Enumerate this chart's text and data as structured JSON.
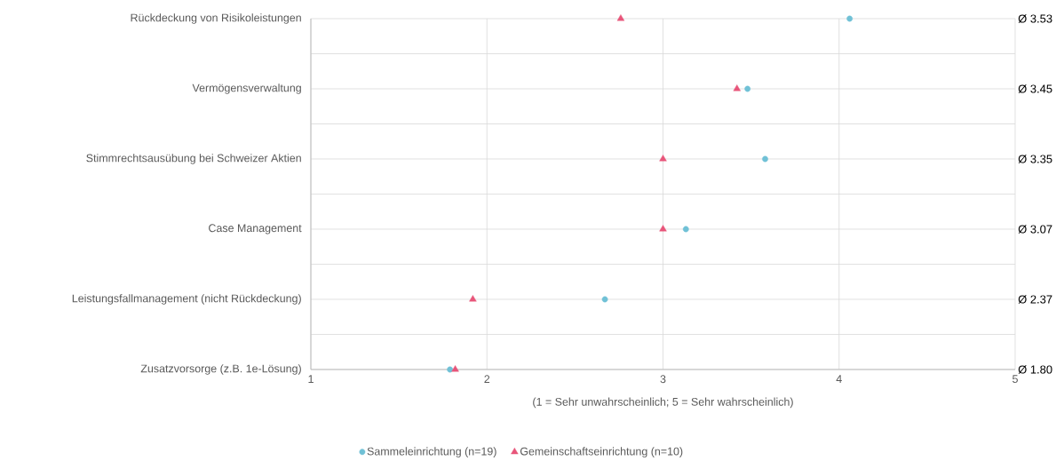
{
  "chart_data": {
    "type": "scatter",
    "orientation": "horizontal",
    "xlabel": "(1 = Sehr unwahrscheinlich; 5 = Sehr wahrscheinlich)",
    "categories": [
      "Rückdeckung von Risikoleistungen",
      "Vermögensverwaltung",
      "Stimmrechtsausübung bei Schweizer Aktien",
      "Case Management",
      "Leistungsfallmanagement (nicht Rückdeckung)",
      "Zusatzvorsorge (z.B. 1e-Lösung)"
    ],
    "series": [
      {
        "name": "Sammeleinrichtung (n=19)",
        "color": "#70c1d6",
        "marker": "circle",
        "values": [
          4.06,
          3.48,
          3.58,
          3.13,
          2.67,
          1.79
        ]
      },
      {
        "name": "Gemeinschaftseinrichtung (n=10)",
        "color": "#e8557a",
        "marker": "triangle",
        "values": [
          2.76,
          3.42,
          3.0,
          3.0,
          1.92,
          1.82
        ]
      }
    ],
    "xlim": [
      1,
      5
    ],
    "xticks": [
      1,
      2,
      3,
      4,
      5
    ],
    "grid": true,
    "legend": "bottom",
    "annotations": [
      "Ø 3.53",
      "Ø 3.45",
      "Ø 3.35",
      "Ø 3.07",
      "Ø 2.37",
      "Ø 1.80"
    ]
  }
}
